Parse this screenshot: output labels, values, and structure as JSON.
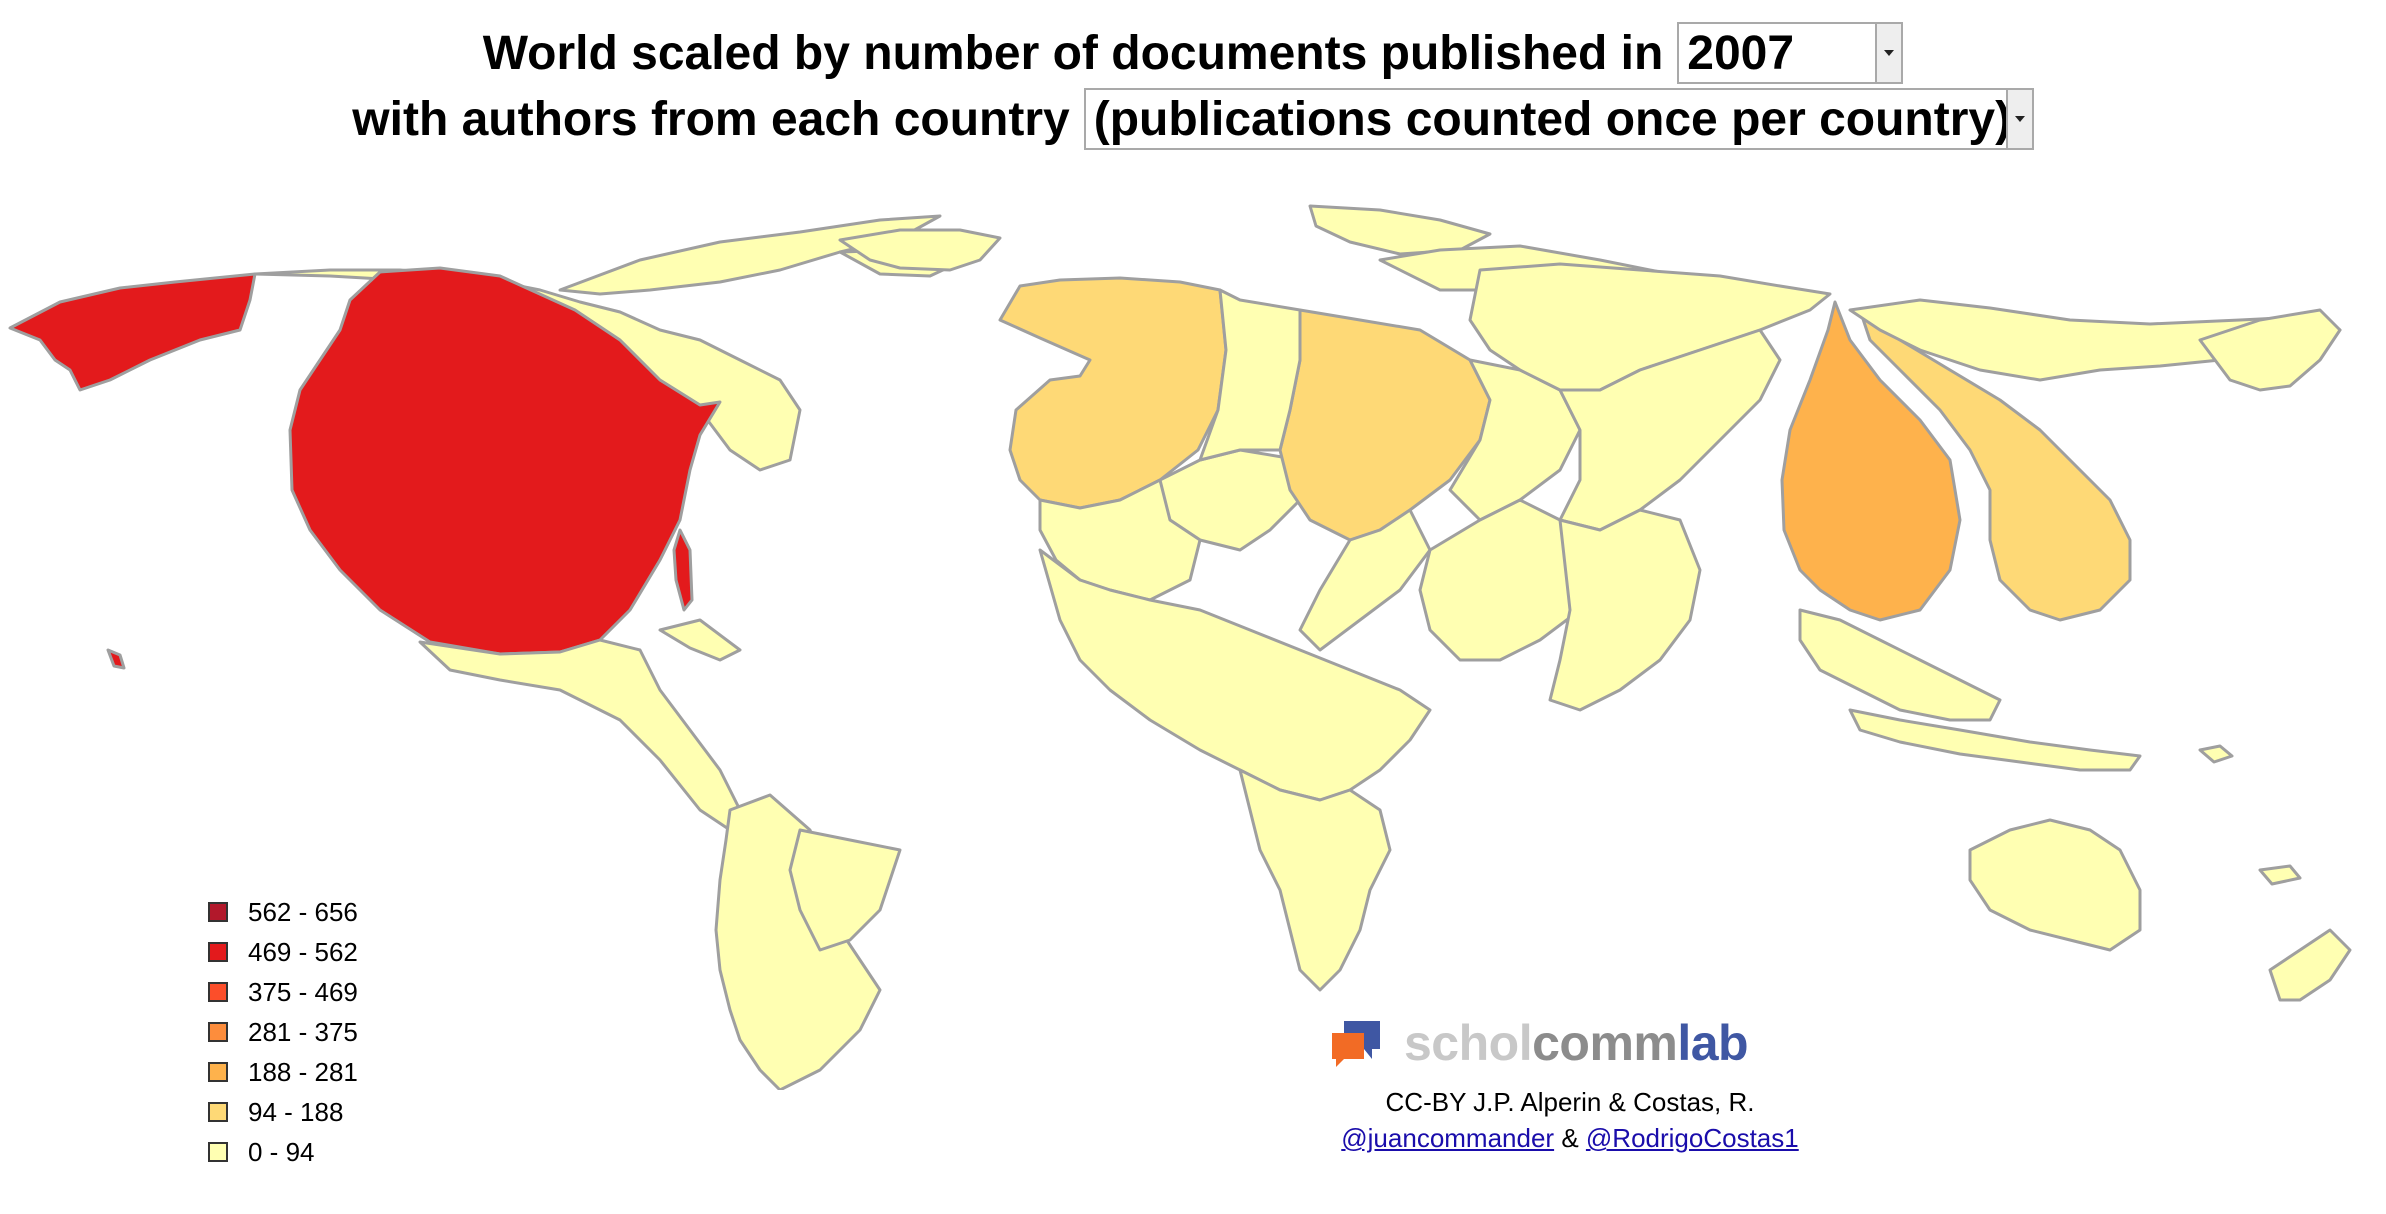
{
  "header": {
    "line1_text": "World scaled by number of documents published in",
    "year_value": "2007",
    "line2_text": "with authors from each country",
    "mode_value": "(publications counted once per country)"
  },
  "legend": {
    "items": [
      {
        "label": "562 - 656",
        "color": "#b2182b"
      },
      {
        "label": "469 - 562",
        "color": "#e31a1c"
      },
      {
        "label": "375 - 469",
        "color": "#fc4e2a"
      },
      {
        "label": "281 - 375",
        "color": "#fd8d3c"
      },
      {
        "label": "188 - 281",
        "color": "#feb24c"
      },
      {
        "label": "94 - 188",
        "color": "#fed976"
      },
      {
        "label": "0 - 94",
        "color": "#ffffb2"
      }
    ]
  },
  "map": {
    "base_color": "#ffffb2",
    "border_color": "#9f9f9f"
  },
  "brand": {
    "part1": "schol",
    "part2": "comm",
    "part3": "lab",
    "logo_colors": [
      "#3f57a3",
      "#f26b25"
    ]
  },
  "credits": {
    "text": "CC-BY J.P. Alperin & Costas, R.",
    "link1": "@juancommander",
    "separator": "&",
    "link2": "@RodrigoCostas1"
  }
}
